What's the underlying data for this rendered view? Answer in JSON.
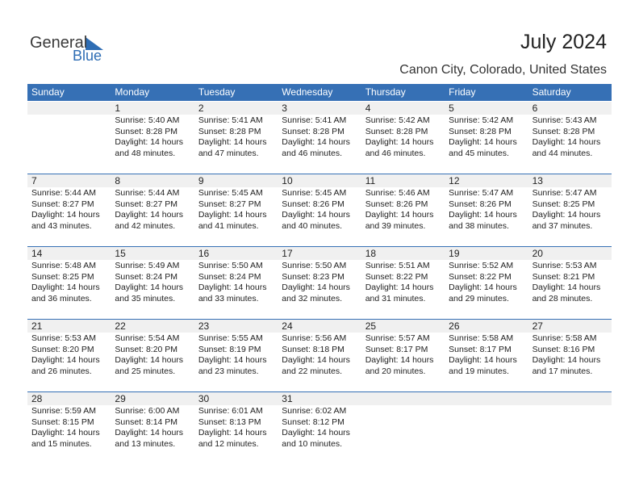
{
  "header": {
    "logo_general": "General",
    "logo_blue": "Blue",
    "title": "July 2024",
    "subtitle": "Canon City, Colorado, United States"
  },
  "weekdays": [
    "Sunday",
    "Monday",
    "Tuesday",
    "Wednesday",
    "Thursday",
    "Friday",
    "Saturday"
  ],
  "weeks": [
    [
      null,
      {
        "day": 1,
        "lines": [
          "Sunrise: 5:40 AM",
          "Sunset: 8:28 PM",
          "Daylight: 14 hours",
          "and 48 minutes."
        ]
      },
      {
        "day": 2,
        "lines": [
          "Sunrise: 5:41 AM",
          "Sunset: 8:28 PM",
          "Daylight: 14 hours",
          "and 47 minutes."
        ]
      },
      {
        "day": 3,
        "lines": [
          "Sunrise: 5:41 AM",
          "Sunset: 8:28 PM",
          "Daylight: 14 hours",
          "and 46 minutes."
        ]
      },
      {
        "day": 4,
        "lines": [
          "Sunrise: 5:42 AM",
          "Sunset: 8:28 PM",
          "Daylight: 14 hours",
          "and 46 minutes."
        ]
      },
      {
        "day": 5,
        "lines": [
          "Sunrise: 5:42 AM",
          "Sunset: 8:28 PM",
          "Daylight: 14 hours",
          "and 45 minutes."
        ]
      },
      {
        "day": 6,
        "lines": [
          "Sunrise: 5:43 AM",
          "Sunset: 8:28 PM",
          "Daylight: 14 hours",
          "and 44 minutes."
        ]
      }
    ],
    [
      {
        "day": 7,
        "lines": [
          "Sunrise: 5:44 AM",
          "Sunset: 8:27 PM",
          "Daylight: 14 hours",
          "and 43 minutes."
        ]
      },
      {
        "day": 8,
        "lines": [
          "Sunrise: 5:44 AM",
          "Sunset: 8:27 PM",
          "Daylight: 14 hours",
          "and 42 minutes."
        ]
      },
      {
        "day": 9,
        "lines": [
          "Sunrise: 5:45 AM",
          "Sunset: 8:27 PM",
          "Daylight: 14 hours",
          "and 41 minutes."
        ]
      },
      {
        "day": 10,
        "lines": [
          "Sunrise: 5:45 AM",
          "Sunset: 8:26 PM",
          "Daylight: 14 hours",
          "and 40 minutes."
        ]
      },
      {
        "day": 11,
        "lines": [
          "Sunrise: 5:46 AM",
          "Sunset: 8:26 PM",
          "Daylight: 14 hours",
          "and 39 minutes."
        ]
      },
      {
        "day": 12,
        "lines": [
          "Sunrise: 5:47 AM",
          "Sunset: 8:26 PM",
          "Daylight: 14 hours",
          "and 38 minutes."
        ]
      },
      {
        "day": 13,
        "lines": [
          "Sunrise: 5:47 AM",
          "Sunset: 8:25 PM",
          "Daylight: 14 hours",
          "and 37 minutes."
        ]
      }
    ],
    [
      {
        "day": 14,
        "lines": [
          "Sunrise: 5:48 AM",
          "Sunset: 8:25 PM",
          "Daylight: 14 hours",
          "and 36 minutes."
        ]
      },
      {
        "day": 15,
        "lines": [
          "Sunrise: 5:49 AM",
          "Sunset: 8:24 PM",
          "Daylight: 14 hours",
          "and 35 minutes."
        ]
      },
      {
        "day": 16,
        "lines": [
          "Sunrise: 5:50 AM",
          "Sunset: 8:24 PM",
          "Daylight: 14 hours",
          "and 33 minutes."
        ]
      },
      {
        "day": 17,
        "lines": [
          "Sunrise: 5:50 AM",
          "Sunset: 8:23 PM",
          "Daylight: 14 hours",
          "and 32 minutes."
        ]
      },
      {
        "day": 18,
        "lines": [
          "Sunrise: 5:51 AM",
          "Sunset: 8:22 PM",
          "Daylight: 14 hours",
          "and 31 minutes."
        ]
      },
      {
        "day": 19,
        "lines": [
          "Sunrise: 5:52 AM",
          "Sunset: 8:22 PM",
          "Daylight: 14 hours",
          "and 29 minutes."
        ]
      },
      {
        "day": 20,
        "lines": [
          "Sunrise: 5:53 AM",
          "Sunset: 8:21 PM",
          "Daylight: 14 hours",
          "and 28 minutes."
        ]
      }
    ],
    [
      {
        "day": 21,
        "lines": [
          "Sunrise: 5:53 AM",
          "Sunset: 8:20 PM",
          "Daylight: 14 hours",
          "and 26 minutes."
        ]
      },
      {
        "day": 22,
        "lines": [
          "Sunrise: 5:54 AM",
          "Sunset: 8:20 PM",
          "Daylight: 14 hours",
          "and 25 minutes."
        ]
      },
      {
        "day": 23,
        "lines": [
          "Sunrise: 5:55 AM",
          "Sunset: 8:19 PM",
          "Daylight: 14 hours",
          "and 23 minutes."
        ]
      },
      {
        "day": 24,
        "lines": [
          "Sunrise: 5:56 AM",
          "Sunset: 8:18 PM",
          "Daylight: 14 hours",
          "and 22 minutes."
        ]
      },
      {
        "day": 25,
        "lines": [
          "Sunrise: 5:57 AM",
          "Sunset: 8:17 PM",
          "Daylight: 14 hours",
          "and 20 minutes."
        ]
      },
      {
        "day": 26,
        "lines": [
          "Sunrise: 5:58 AM",
          "Sunset: 8:17 PM",
          "Daylight: 14 hours",
          "and 19 minutes."
        ]
      },
      {
        "day": 27,
        "lines": [
          "Sunrise: 5:58 AM",
          "Sunset: 8:16 PM",
          "Daylight: 14 hours",
          "and 17 minutes."
        ]
      }
    ],
    [
      {
        "day": 28,
        "lines": [
          "Sunrise: 5:59 AM",
          "Sunset: 8:15 PM",
          "Daylight: 14 hours",
          "and 15 minutes."
        ]
      },
      {
        "day": 29,
        "lines": [
          "Sunrise: 6:00 AM",
          "Sunset: 8:14 PM",
          "Daylight: 14 hours",
          "and 13 minutes."
        ]
      },
      {
        "day": 30,
        "lines": [
          "Sunrise: 6:01 AM",
          "Sunset: 8:13 PM",
          "Daylight: 14 hours",
          "and 12 minutes."
        ]
      },
      {
        "day": 31,
        "lines": [
          "Sunrise: 6:02 AM",
          "Sunset: 8:12 PM",
          "Daylight: 14 hours",
          "and 10 minutes."
        ]
      },
      null,
      null,
      null
    ]
  ]
}
